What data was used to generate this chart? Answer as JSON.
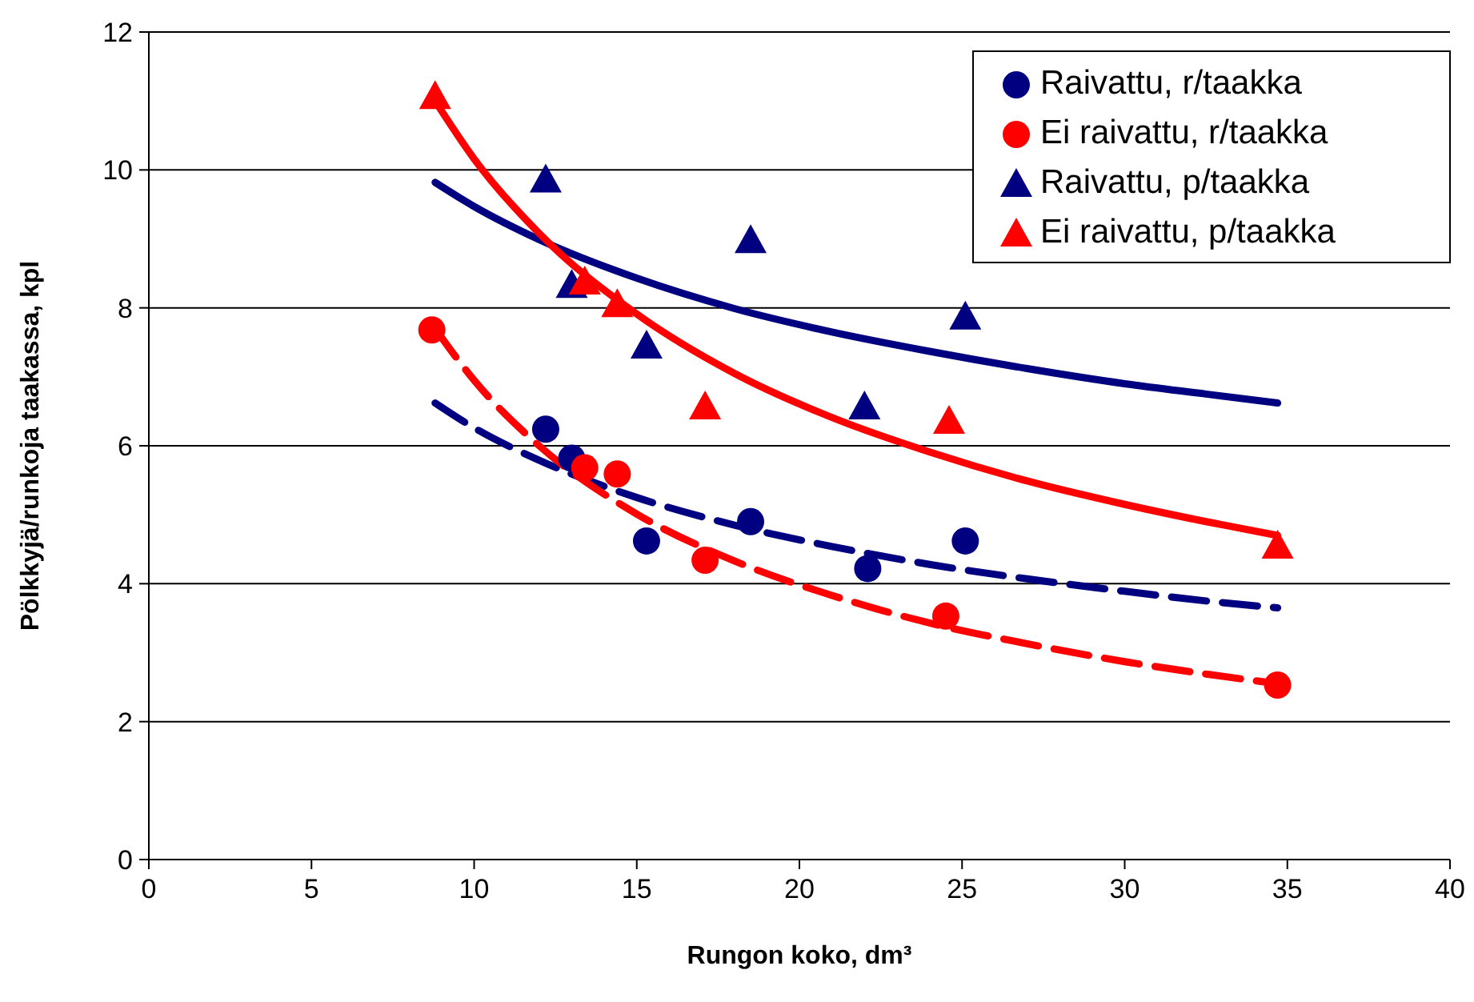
{
  "chart_data": {
    "type": "scatter",
    "xlabel": "Rungon koko, dm³",
    "ylabel": "Pölkkyjä/runkoja taakassa, kpl",
    "xlim": [
      0,
      40
    ],
    "ylim": [
      0,
      12
    ],
    "xticks": [
      0,
      5,
      10,
      15,
      20,
      25,
      30,
      35,
      40
    ],
    "yticks": [
      0,
      2,
      4,
      6,
      8,
      10,
      12
    ],
    "grid": "y",
    "legend": "top right",
    "series": [
      {
        "name": "Raivattu, r/taakka",
        "color": "#000080",
        "marker": "circle",
        "x": [
          12.2,
          13.0,
          15.3,
          18.5,
          22.1,
          25.1
        ],
        "values": [
          6.24,
          5.82,
          4.62,
          4.9,
          4.22,
          4.62
        ]
      },
      {
        "name": "Ei raivattu, r/taakka",
        "color": "#ff0000",
        "marker": "circle",
        "x": [
          8.7,
          13.4,
          14.4,
          17.1,
          24.5,
          34.7
        ],
        "values": [
          7.68,
          5.68,
          5.59,
          4.34,
          3.53,
          2.53
        ]
      },
      {
        "name": "Raivattu, p/taakka",
        "color": "#000080",
        "marker": "triangle",
        "x": [
          12.2,
          13.0,
          15.3,
          18.5,
          22.0,
          25.1
        ],
        "values": [
          9.86,
          8.33,
          7.45,
          8.98,
          6.57,
          7.87
        ]
      },
      {
        "name": "Ei raivattu, p/taakka",
        "color": "#ff0000",
        "marker": "triangle",
        "x": [
          8.8,
          13.4,
          14.4,
          17.1,
          24.6,
          34.7
        ],
        "values": [
          11.07,
          8.38,
          8.05,
          6.57,
          6.36,
          4.55
        ]
      },
      {
        "type": "line",
        "color": "#000080",
        "line_style": "solid",
        "marker": "none",
        "x": [
          8.8,
          10,
          12,
          15,
          18,
          21,
          24,
          27,
          30,
          32.5,
          34.7
        ],
        "values": [
          9.82,
          9.47,
          8.99,
          8.43,
          7.99,
          7.65,
          7.37,
          7.12,
          6.9,
          6.75,
          6.62
        ]
      },
      {
        "type": "line",
        "color": "#ff0000",
        "line_style": "solid",
        "marker": "none",
        "x": [
          8.8,
          10,
          12,
          15,
          18,
          21,
          24,
          27,
          30,
          32.5,
          34.7
        ],
        "values": [
          11.0,
          10.16,
          9.08,
          7.91,
          7.05,
          6.41,
          5.91,
          5.49,
          5.15,
          4.9,
          4.7
        ]
      },
      {
        "type": "line",
        "color": "#000080",
        "line_style": "dashed",
        "marker": "none",
        "x": [
          8.8,
          10,
          12,
          15,
          18,
          21,
          24,
          27,
          30,
          32.5,
          34.7
        ],
        "values": [
          6.62,
          6.26,
          5.79,
          5.25,
          4.85,
          4.54,
          4.28,
          4.07,
          3.89,
          3.75,
          3.65
        ]
      },
      {
        "type": "line",
        "color": "#ff0000",
        "line_style": "dashed",
        "marker": "none",
        "x": [
          8.8,
          10,
          12,
          15,
          18,
          21,
          24,
          27,
          30,
          32.5,
          34.7
        ],
        "values": [
          7.7,
          6.95,
          6.0,
          5.01,
          4.33,
          3.83,
          3.43,
          3.13,
          2.87,
          2.69,
          2.55
        ]
      }
    ]
  }
}
